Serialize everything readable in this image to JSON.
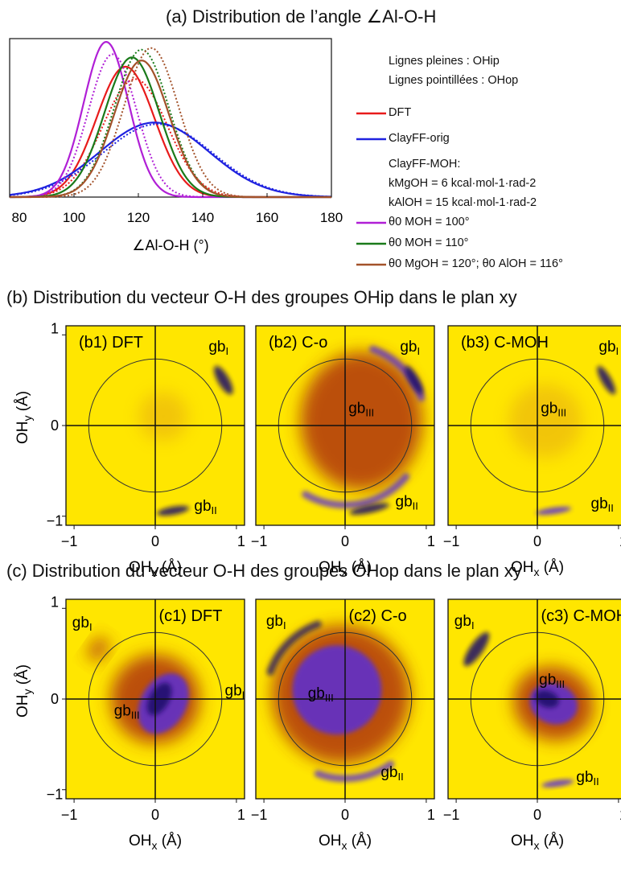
{
  "titles": {
    "a": "(a) Distribution de l’angle ∠Al-O-H",
    "b": "(b) Distribution du vecteur O-H des groupes OHip dans le plan xy",
    "c": "(c) Distribution du vecteur O-H des groupes OHop dans le plan xy"
  },
  "legend": {
    "line_solid": "Lignes pleines : OHip",
    "line_dotted": "Lignes pointillées : OHop",
    "dft": "DFT",
    "clayff_orig": "ClayFF-orig",
    "clayff_moh": "ClayFF-MOH:",
    "k_mgoh": "kMgOH = 6 kcal·mol-1·rad-2",
    "k_aloh": "kAlOH = 15 kcal·mol-1·rad-2",
    "theta100": "θ0 MOH = 100°",
    "theta110": "θ0 MOH = 110°",
    "theta120": "θ0 MgOH = 120°; θ0 AlOH = 116°"
  },
  "colors": {
    "dft": "#e81b1b",
    "clayff_orig": "#1f22e0",
    "theta100": "#b01fd6",
    "theta110": "#1a7a1a",
    "theta120": "#a3522a",
    "map_bg": "#ffe600",
    "map_low": "#d98a1a",
    "map_mid": "#b0360f",
    "map_high": "#5a2dd6"
  },
  "chart_data": [
    {
      "type": "line",
      "id": "a",
      "xlabel": "∠Al-O-H (°)",
      "ylabel": "",
      "xlim": [
        80,
        180
      ],
      "xticks": [
        "80",
        "100",
        "120",
        "140",
        "160",
        "180"
      ],
      "series": [
        {
          "name": "DFT",
          "style": "solid",
          "mean": 116,
          "sd": 9,
          "peak": 0.84
        },
        {
          "name": "DFT",
          "style": "dotted",
          "mean": 119,
          "sd": 10,
          "peak": 0.76
        },
        {
          "name": "ClayFF-orig",
          "style": "solid",
          "mean": 125,
          "sd": 17,
          "peak": 0.48
        },
        {
          "name": "ClayFF-orig",
          "style": "dotted",
          "mean": 126,
          "sd": 17,
          "peak": 0.47
        },
        {
          "name": "θ0 MOH = 100°",
          "style": "solid",
          "mean": 110,
          "sd": 7,
          "peak": 1.0
        },
        {
          "name": "θ0 MOH = 100°",
          "style": "dotted",
          "mean": 112,
          "sd": 7.5,
          "peak": 0.92
        },
        {
          "name": "θ0 MOH = 110°",
          "style": "solid",
          "mean": 118,
          "sd": 8.5,
          "peak": 0.9
        },
        {
          "name": "θ0 MOH = 110°",
          "style": "dotted",
          "mean": 121,
          "sd": 8.5,
          "peak": 0.95
        },
        {
          "name": "θ0 MgOH = 120°; θ0 AlOH = 116°",
          "style": "solid",
          "mean": 121,
          "sd": 8.5,
          "peak": 0.88
        },
        {
          "name": "θ0 MgOH = 120°; θ0 AlOH = 116°",
          "style": "dotted",
          "mean": 124,
          "sd": 8.5,
          "peak": 0.96
        }
      ]
    },
    {
      "type": "heatmap",
      "id": "b",
      "xlabel": "OHx (Å)",
      "ylabel": "OHy (Å)",
      "xlim": [
        -1.1,
        1.1
      ],
      "ylim": [
        -1.1,
        1.1
      ],
      "xticks": [
        "−1",
        "0",
        "1"
      ],
      "yticks": [
        "1",
        "0",
        "−1"
      ],
      "panels": [
        {
          "label": "(b1) DFT",
          "annotations": [
            {
              "text": "gbI",
              "x": 0.78,
              "y": 0.88
            },
            {
              "text": "gbII",
              "x": 0.62,
              "y": -0.88
            }
          ],
          "features": [
            {
              "kind": "blob",
              "x": 0.84,
              "y": 0.5,
              "rx": 0.07,
              "ry": 0.2,
              "rot": -30,
              "level": 3
            },
            {
              "kind": "blob",
              "x": 0.22,
              "y": -0.94,
              "rx": 0.2,
              "ry": 0.05,
              "rot": -10,
              "level": 3
            },
            {
              "kind": "blob",
              "x": 0.1,
              "y": 0.1,
              "rx": 0.3,
              "ry": 0.3,
              "rot": 0,
              "level": 0
            }
          ]
        },
        {
          "label": "(b2) C-o",
          "annotations": [
            {
              "text": "gbI",
              "x": 0.8,
              "y": 0.88
            },
            {
              "text": "gbIII",
              "x": 0.2,
              "y": 0.2
            },
            {
              "text": "gbII",
              "x": 0.76,
              "y": -0.83
            }
          ],
          "features": [
            {
              "kind": "blob",
              "x": 0.2,
              "y": 0.05,
              "rx": 0.75,
              "ry": 0.85,
              "rot": 0,
              "level": 1
            },
            {
              "kind": "arc",
              "r": 1.0,
              "from": 20,
              "to": 70,
              "level": 2
            },
            {
              "kind": "blob",
              "x": 0.85,
              "y": 0.5,
              "rx": 0.06,
              "ry": 0.2,
              "rot": -30,
              "level": 3
            },
            {
              "kind": "arc",
              "r": 0.98,
              "from": -120,
              "to": -40,
              "level": 2
            },
            {
              "kind": "blob",
              "x": 0.3,
              "y": -0.92,
              "rx": 0.25,
              "ry": 0.05,
              "rot": -12,
              "level": 3
            }
          ]
        },
        {
          "label": "(b3) C-MOH",
          "annotations": [
            {
              "text": "gbI",
              "x": 0.88,
              "y": 0.88
            },
            {
              "text": "gbIII",
              "x": 0.2,
              "y": 0.2
            },
            {
              "text": "gbII",
              "x": 0.8,
              "y": -0.85
            }
          ],
          "features": [
            {
              "kind": "blob",
              "x": 0.1,
              "y": 0.05,
              "rx": 0.45,
              "ry": 0.45,
              "rot": 0,
              "level": 0
            },
            {
              "kind": "blob",
              "x": 0.85,
              "y": 0.5,
              "rx": 0.06,
              "ry": 0.2,
              "rot": -30,
              "level": 3
            },
            {
              "kind": "blob",
              "x": 0.2,
              "y": -0.94,
              "rx": 0.22,
              "ry": 0.04,
              "rot": -8,
              "level": 2
            }
          ]
        }
      ]
    },
    {
      "type": "heatmap",
      "id": "c",
      "xlabel": "OHx (Å)",
      "ylabel": "OHy (Å)",
      "xlim": [
        -1.1,
        1.1
      ],
      "ylim": [
        -1.1,
        1.1
      ],
      "xticks": [
        "−1",
        "0",
        "1"
      ],
      "yticks": [
        "1",
        "0",
        "−1"
      ],
      "panels": [
        {
          "label": "(c1) DFT",
          "annotations": [
            {
              "text": "gbI",
              "x": -0.9,
              "y": 0.85
            },
            {
              "text": "gbI",
              "x": 0.98,
              "y": 0.1
            },
            {
              "text": "gbIII",
              "x": -0.35,
              "y": -0.12
            }
          ],
          "features": [
            {
              "kind": "blob",
              "x": -0.7,
              "y": 0.55,
              "rx": 0.1,
              "ry": 0.16,
              "rot": 35,
              "level": 1
            },
            {
              "kind": "blob",
              "x": 0.0,
              "y": 0.0,
              "rx": 0.55,
              "ry": 0.55,
              "rot": 0,
              "level": 1
            },
            {
              "kind": "blob",
              "x": 0.1,
              "y": -0.05,
              "rx": 0.28,
              "ry": 0.4,
              "rot": 30,
              "level": 2
            },
            {
              "kind": "blob",
              "x": 0.05,
              "y": 0.0,
              "rx": 0.12,
              "ry": 0.22,
              "rot": 30,
              "level": 3
            }
          ]
        },
        {
          "label": "(c2) C-o",
          "annotations": [
            {
              "text": "gbI",
              "x": -0.85,
              "y": 0.87
            },
            {
              "text": "gbIII",
              "x": -0.3,
              "y": 0.07
            },
            {
              "text": "gbII",
              "x": 0.58,
              "y": -0.8
            }
          ],
          "features": [
            {
              "kind": "blob",
              "x": -0.05,
              "y": 0.05,
              "rx": 0.85,
              "ry": 0.85,
              "rot": 0,
              "level": 1
            },
            {
              "kind": "blob",
              "x": -0.1,
              "y": 0.1,
              "rx": 0.55,
              "ry": 0.55,
              "rot": 0,
              "level": 2
            },
            {
              "kind": "arc",
              "r": 0.98,
              "from": 110,
              "to": 160,
              "level": 3
            },
            {
              "kind": "arc",
              "r": 0.98,
              "from": -110,
              "to": -55,
              "level": 2
            }
          ]
        },
        {
          "label": "(c3) C-MOH",
          "annotations": [
            {
              "text": "gbI",
              "x": -0.9,
              "y": 0.87
            },
            {
              "text": "gbIII",
              "x": 0.18,
              "y": 0.22
            },
            {
              "text": "gbII",
              "x": 0.62,
              "y": -0.85
            }
          ],
          "features": [
            {
              "kind": "blob",
              "x": -0.75,
              "y": 0.55,
              "rx": 0.08,
              "ry": 0.25,
              "rot": 35,
              "level": 3
            },
            {
              "kind": "blob",
              "x": 0.2,
              "y": -0.05,
              "rx": 0.5,
              "ry": 0.45,
              "rot": 20,
              "level": 1
            },
            {
              "kind": "blob",
              "x": 0.2,
              "y": -0.05,
              "rx": 0.3,
              "ry": 0.25,
              "rot": 20,
              "level": 2
            },
            {
              "kind": "blob",
              "x": 0.12,
              "y": 0.0,
              "rx": 0.15,
              "ry": 0.1,
              "rot": 20,
              "level": 3
            },
            {
              "kind": "blob",
              "x": 0.25,
              "y": -0.93,
              "rx": 0.2,
              "ry": 0.04,
              "rot": -8,
              "level": 2
            }
          ]
        }
      ]
    }
  ]
}
